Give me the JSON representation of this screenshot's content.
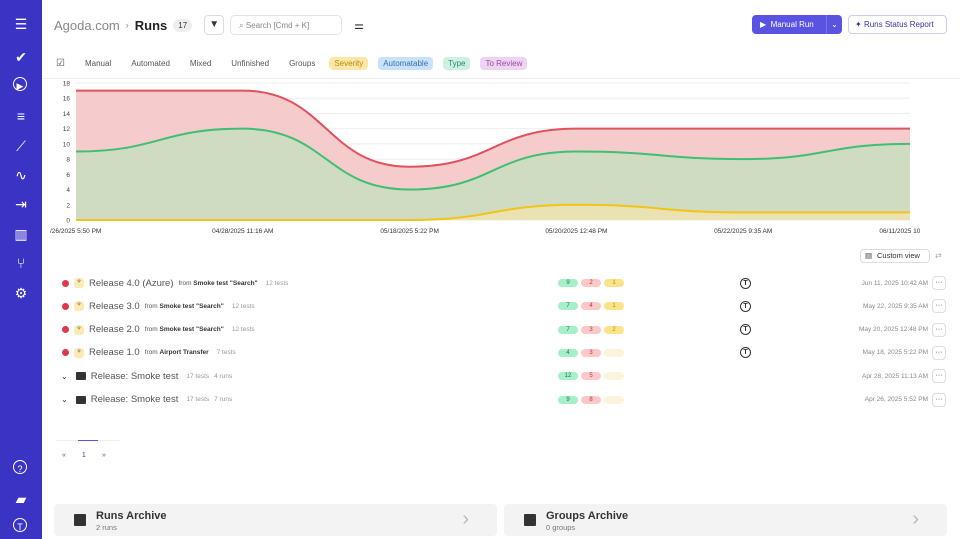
{
  "sidebar": {
    "icons": [
      "menu-icon",
      "check-icon",
      "play-icon",
      "list-check-icon",
      "steps-icon",
      "activity-icon",
      "import-icon",
      "analytics-icon",
      "branch-icon",
      "settings-icon",
      "help-icon",
      "folder-icon",
      "user-avatar-icon"
    ]
  },
  "header": {
    "project": "Agoda.com",
    "separator": "›",
    "title": "Runs",
    "count": "17",
    "search_placeholder": "Search [Cmd + K]",
    "manual_run": "Manual Run",
    "status_report": "Runs Status Report"
  },
  "tabs": [
    "Manual",
    "Automated",
    "Mixed",
    "Unfinished",
    "Groups"
  ],
  "tags": [
    {
      "label": "Severity",
      "bg": "#fde7a6",
      "fg": "#b48a1a"
    },
    {
      "label": "Automatable",
      "bg": "#c8e2fb",
      "fg": "#3b6fa8"
    },
    {
      "label": "Type",
      "bg": "#cdf1e3",
      "fg": "#2f8a67"
    },
    {
      "label": "To Review",
      "bg": "#efd3f2",
      "fg": "#9a4aa6"
    }
  ],
  "chart_data": {
    "type": "area",
    "stacked": false,
    "ylim": [
      0,
      18
    ],
    "yticks": [
      0,
      2,
      4,
      6,
      8,
      10,
      12,
      14,
      16,
      18
    ],
    "grid": true,
    "x": [
      "/26/2025 5:50 PM",
      "04/28/2025 11:16 AM",
      "05/18/2025 5:22 PM",
      "05/20/2025 12:48 PM",
      "05/22/2025 9:35 AM",
      "06/11/2025 10:42 AM"
    ],
    "series": [
      {
        "color": "#e0525e",
        "fill": "#f5c2c2",
        "values": [
          17,
          17,
          7,
          12,
          12,
          12
        ]
      },
      {
        "color": "#3fbf73",
        "fill": "#c9dfc0",
        "values": [
          9,
          12,
          4,
          9,
          8,
          10
        ]
      },
      {
        "color": "#f0c419",
        "fill": "#efe3b0",
        "values": [
          0,
          0,
          0,
          2,
          1,
          1
        ]
      }
    ]
  },
  "custom_view": "Custom view",
  "runs": [
    {
      "type": "run",
      "name": "Release 4.0 (Azure)",
      "from_label": "from",
      "from": "Smoke test \"Search\"",
      "tests": "12 tests",
      "passed": "9",
      "failed": "2",
      "skipped": "1",
      "date": "Jun 11, 2025 10:42 AM"
    },
    {
      "type": "run",
      "name": "Release 3.0",
      "from_label": "from",
      "from": "Smoke test \"Search\"",
      "tests": "12 tests",
      "passed": "7",
      "failed": "4",
      "skipped": "1",
      "date": "May 22, 2025 9:35 AM"
    },
    {
      "type": "run",
      "name": "Release 2.0",
      "from_label": "from",
      "from": "Smoke test \"Search\"",
      "tests": "12 tests",
      "passed": "7",
      "failed": "3",
      "skipped": "2",
      "date": "May 20, 2025 12:48 PM"
    },
    {
      "type": "run",
      "name": "Release 1.0",
      "from_label": "from",
      "from": "Airport Transfer",
      "tests": "7 tests",
      "passed": "4",
      "failed": "3",
      "skipped": "",
      "date": "May 18, 2025 5:22 PM"
    },
    {
      "type": "group",
      "name": "Release: Smoke test",
      "tests": "17 tests",
      "runs": "4 runs",
      "passed": "12",
      "failed": "5",
      "skipped": "",
      "date": "Apr 28, 2025 11:13 AM"
    },
    {
      "type": "group",
      "name": "Release: Smoke test",
      "tests": "17 tests",
      "runs": "7 runs",
      "passed": "9",
      "failed": "8",
      "skipped": "",
      "date": "Apr 26, 2025 5:52 PM"
    }
  ],
  "pagination": {
    "prev": "«",
    "page": "1",
    "next": "»"
  },
  "archives": [
    {
      "title": "Runs Archive",
      "sub": "2 runs"
    },
    {
      "title": "Groups Archive",
      "sub": "0 groups"
    }
  ]
}
